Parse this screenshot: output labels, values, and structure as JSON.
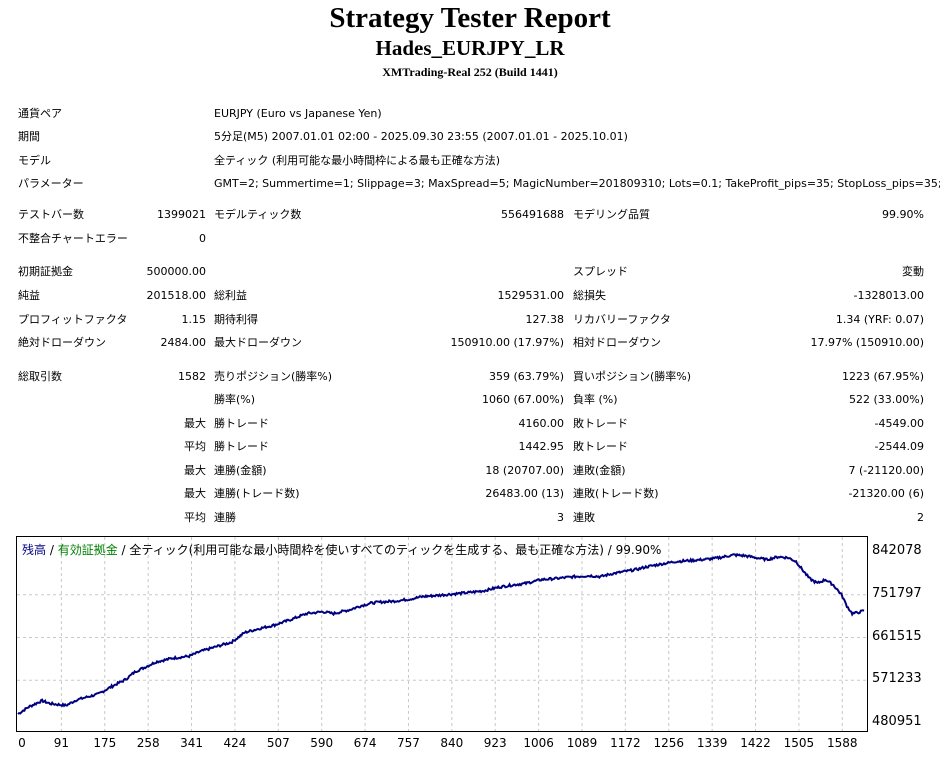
{
  "header": {
    "title": "Strategy Tester Report",
    "expert": "Hades_EURJPY_LR",
    "server": "XMTrading-Real 252 (Build 1441)"
  },
  "info": {
    "pair_label": "通貨ペア",
    "pair_value": "EURJPY (Euro vs Japanese Yen)",
    "period_label": "期間",
    "period_value": "5分足(M5) 2007.01.01 02:00 - 2025.09.30 23:55 (2007.01.01 - 2025.10.01)",
    "model_label": "モデル",
    "model_value": "全ティック (利用可能な最小時間枠による最も正確な方法)",
    "params_label": "パラメーター",
    "params_value": "GMT=2; Summertime=1; Slippage=3; MaxSpread=5; MagicNumber=201809310; Lots=0.1; TakeProfit_pips=35; StopLoss_pips=35;"
  },
  "bars": {
    "bars_label": "テストバー数",
    "bars_value": "1399021",
    "ticks_label": "モデルティック数",
    "ticks_value": "556491688",
    "quality_label": "モデリング品質",
    "quality_value": "99.90%",
    "errors_label": "不整合チャートエラー",
    "errors_value": "0"
  },
  "results": {
    "deposit_label": "初期証拠金",
    "deposit_value": "500000.00",
    "spread_label": "スプレッド",
    "spread_value": "変動",
    "net_label": "純益",
    "net_value": "201518.00",
    "gross_profit_label": "総利益",
    "gross_profit_value": "1529531.00",
    "gross_loss_label": "総損失",
    "gross_loss_value": "-1328013.00",
    "pf_label": "プロフィットファクタ",
    "pf_value": "1.15",
    "payoff_label": "期待利得",
    "payoff_value": "127.38",
    "rf_label": "リカバリーファクタ",
    "rf_value": "1.34 (YRF: 0.07)",
    "abs_dd_label": "絶対ドローダウン",
    "abs_dd_value": "2484.00",
    "max_dd_label": "最大ドローダウン",
    "max_dd_value": "150910.00 (17.97%)",
    "rel_dd_label": "相対ドローダウン",
    "rel_dd_value": "17.97% (150910.00)"
  },
  "trades": {
    "total_label": "総取引数",
    "total_value": "1582",
    "short_label": "売りポジション(勝率%)",
    "short_value": "359 (63.79%)",
    "long_label": "買いポジション(勝率%)",
    "long_value": "1223 (67.95%)",
    "win_rate_label": "勝率(%)",
    "win_rate_value": "1060 (67.00%)",
    "loss_rate_label": "負率 (%)",
    "loss_rate_value": "522 (33.00%)",
    "max_label": "最大",
    "avg_label": "平均",
    "win_trade_label": "勝トレード",
    "loss_trade_label": "敗トレード",
    "largest_win": "4160.00",
    "largest_loss": "-4549.00",
    "avg_win": "1442.95",
    "avg_loss": "-2544.09",
    "cons_win_amt_label": "連勝(金額)",
    "cons_win_amt_value": "18 (20707.00)",
    "cons_loss_amt_label": "連敗(金額)",
    "cons_loss_amt_value": "7 (-21120.00)",
    "cons_win_cnt_label": "連勝(トレード数)",
    "cons_win_cnt_value": "26483.00 (13)",
    "cons_loss_cnt_label": "連敗(トレード数)",
    "cons_loss_cnt_value": "-21320.00 (6)",
    "avg_cons_win_label": "連勝",
    "avg_cons_win_value": "3",
    "avg_cons_loss_label": "連敗",
    "avg_cons_loss_value": "2"
  },
  "colors": {
    "balance": "#000080",
    "equity": "#008000",
    "grid": "#c8c8c8"
  },
  "chart_data": {
    "type": "line",
    "legend": {
      "balance": "残高",
      "sep1": " / ",
      "equity": "有効証拠金",
      "rest": " / 全ティック(利用可能な最小時間枠を使いすべてのティックを生成する、最も正確な方法) / 99.90%"
    },
    "x_ticks": [
      "0",
      "91",
      "175",
      "258",
      "341",
      "424",
      "507",
      "590",
      "674",
      "757",
      "840",
      "923",
      "1006",
      "1089",
      "1172",
      "1256",
      "1339",
      "1422",
      "1505",
      "1588"
    ],
    "y_ticks": [
      "842078",
      "751797",
      "661515",
      "571233",
      "480951"
    ],
    "ylim": [
      480951,
      842078
    ],
    "xlim": [
      0,
      1582
    ],
    "grid": true,
    "series": [
      {
        "x": [
          0,
          20,
          45,
          60,
          90,
          110,
          130,
          150,
          175,
          200,
          220,
          240,
          258,
          290,
          320,
          341,
          370,
          400,
          424,
          450,
          480,
          507,
          540,
          570,
          590,
          620,
          640,
          660,
          674,
          700,
          730,
          757,
          780,
          800,
          840,
          870,
          900,
          923,
          950,
          980,
          1006,
          1040,
          1070,
          1089,
          1110,
          1130,
          1160,
          1172,
          1200,
          1230,
          1256,
          1280,
          1300,
          1320,
          1339,
          1360,
          1380,
          1400,
          1422,
          1440,
          1455,
          1470,
          1480,
          1495,
          1510,
          1525,
          1540,
          1550,
          1560,
          1570,
          1582
        ],
        "y": [
          500000,
          515000,
          528000,
          522000,
          518000,
          530000,
          536000,
          542000,
          558000,
          572000,
          590000,
          600000,
          610000,
          618000,
          622000,
          632000,
          642000,
          652000,
          672000,
          680000,
          688000,
          698000,
          712000,
          716000,
          712000,
          720000,
          728000,
          734000,
          736000,
          738000,
          742000,
          748000,
          750000,
          752000,
          756000,
          760000,
          768000,
          772000,
          776000,
          784000,
          786000,
          790000,
          792000,
          790000,
          796000,
          800000,
          806000,
          810000,
          816000,
          822000,
          824000,
          826000,
          828000,
          832000,
          836000,
          834000,
          830000,
          826000,
          832000,
          830000,
          822000,
          800000,
          786000,
          776000,
          784000,
          772000,
          752000,
          728000,
          712000,
          714000,
          718000
        ]
      }
    ]
  }
}
